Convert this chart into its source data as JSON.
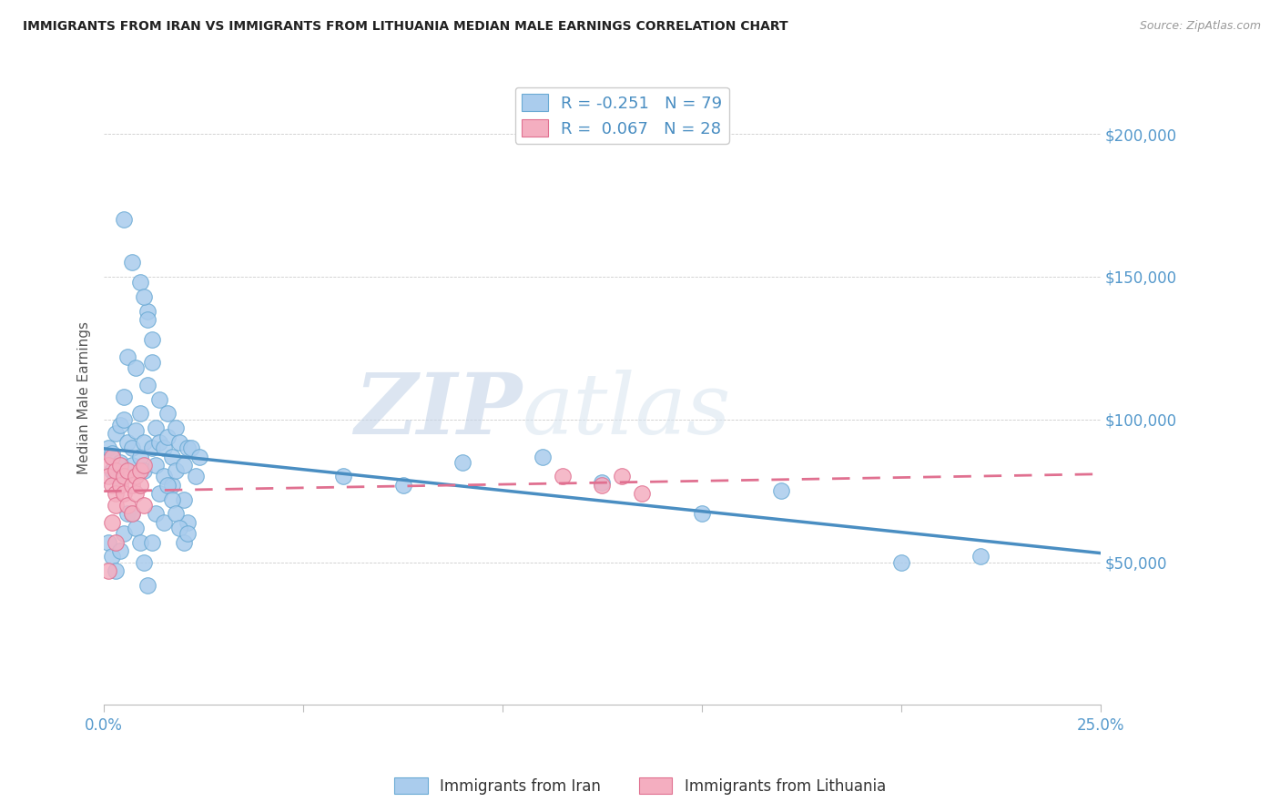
{
  "title": "IMMIGRANTS FROM IRAN VS IMMIGRANTS FROM LITHUANIA MEDIAN MALE EARNINGS CORRELATION CHART",
  "source": "Source: ZipAtlas.com",
  "ylabel": "Median Male Earnings",
  "watermark": "ZIPatlas",
  "xlim": [
    0.0,
    0.25
  ],
  "ylim": [
    0,
    215000
  ],
  "iran_color": "#aacced",
  "iran_edge_color": "#6aaad4",
  "lith_color": "#f4aec0",
  "lith_edge_color": "#e07090",
  "iran_line_color": "#4a8ec2",
  "lith_line_color": "#e07090",
  "legend_text_color": "#4a8ec2",
  "axis_tick_color": "#5599cc",
  "iran_R": "-0.251",
  "iran_N": "79",
  "lith_R": "0.067",
  "lith_N": "28",
  "iran_scatter_x": [
    0.001,
    0.002,
    0.002,
    0.003,
    0.003,
    0.004,
    0.004,
    0.005,
    0.005,
    0.006,
    0.006,
    0.007,
    0.007,
    0.008,
    0.008,
    0.009,
    0.009,
    0.01,
    0.01,
    0.011,
    0.011,
    0.012,
    0.012,
    0.013,
    0.013,
    0.014,
    0.014,
    0.015,
    0.015,
    0.016,
    0.016,
    0.017,
    0.017,
    0.018,
    0.018,
    0.019,
    0.02,
    0.02,
    0.021,
    0.021,
    0.005,
    0.007,
    0.009,
    0.01,
    0.011,
    0.012,
    0.001,
    0.002,
    0.003,
    0.004,
    0.005,
    0.006,
    0.007,
    0.008,
    0.009,
    0.01,
    0.011,
    0.012,
    0.013,
    0.014,
    0.015,
    0.016,
    0.017,
    0.018,
    0.019,
    0.02,
    0.021,
    0.022,
    0.023,
    0.024,
    0.06,
    0.075,
    0.09,
    0.11,
    0.125,
    0.15,
    0.17,
    0.2,
    0.22
  ],
  "iran_scatter_y": [
    90000,
    88000,
    82000,
    95000,
    80000,
    98000,
    85000,
    108000,
    100000,
    122000,
    92000,
    90000,
    84000,
    118000,
    96000,
    102000,
    87000,
    92000,
    82000,
    138000,
    112000,
    128000,
    90000,
    97000,
    84000,
    107000,
    92000,
    90000,
    80000,
    94000,
    102000,
    87000,
    77000,
    97000,
    82000,
    92000,
    84000,
    72000,
    90000,
    64000,
    170000,
    155000,
    148000,
    143000,
    135000,
    120000,
    57000,
    52000,
    47000,
    54000,
    60000,
    67000,
    67000,
    62000,
    57000,
    50000,
    42000,
    57000,
    67000,
    74000,
    64000,
    77000,
    72000,
    67000,
    62000,
    57000,
    60000,
    90000,
    80000,
    87000,
    80000,
    77000,
    85000,
    87000,
    78000,
    67000,
    75000,
    50000,
    52000
  ],
  "lith_scatter_x": [
    0.001,
    0.001,
    0.002,
    0.002,
    0.003,
    0.003,
    0.003,
    0.004,
    0.004,
    0.005,
    0.005,
    0.006,
    0.006,
    0.007,
    0.007,
    0.008,
    0.008,
    0.009,
    0.009,
    0.01,
    0.01,
    0.001,
    0.002,
    0.003,
    0.115,
    0.125,
    0.13,
    0.135
  ],
  "lith_scatter_y": [
    84000,
    80000,
    87000,
    77000,
    82000,
    74000,
    70000,
    84000,
    77000,
    80000,
    74000,
    82000,
    70000,
    77000,
    67000,
    80000,
    74000,
    82000,
    77000,
    84000,
    70000,
    47000,
    64000,
    57000,
    80000,
    77000,
    80000,
    74000
  ]
}
